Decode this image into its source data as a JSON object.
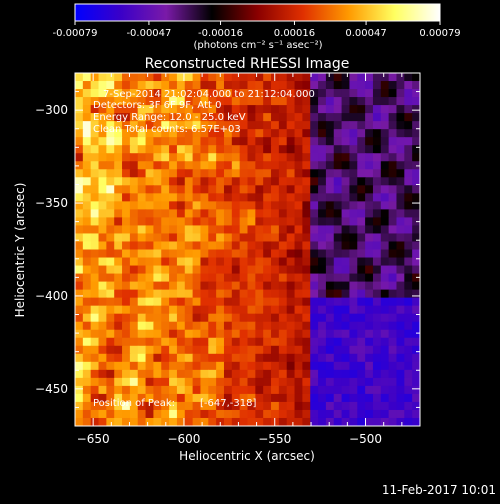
{
  "colorbar": {
    "ticks": [
      "-0.00079",
      "-0.00047",
      "-0.00016",
      "0.00016",
      "0.00047",
      "0.00079"
    ],
    "tick_values": [
      -0.00079,
      -0.00047,
      -0.00016,
      0.00016,
      0.00047,
      0.00079
    ],
    "unit_label": "(photons cm⁻² s⁻¹ asec⁻²)",
    "range": [
      -0.00079,
      0.00079
    ],
    "stops": [
      "#0000ff",
      "#3a00c8",
      "#7a1aa8",
      "#000000",
      "#8a0000",
      "#e03000",
      "#ff9a00",
      "#ffff60",
      "#ffffff"
    ]
  },
  "header": {
    "line1": "7-Sep-2014 21:02:04.000 to 21:12:04.000",
    "line2": "Detectors: 3F 6F 9F, Att 0",
    "line3": "Energy Range: 12.0 - 25.0 keV",
    "line4": "Clean    Total counts: 6.57E+03"
  },
  "peak": {
    "label": "Position of Peak:",
    "value": "[-647,-318]"
  },
  "footer": {
    "date": "11-Feb-2017 10:01"
  },
  "chart_data": {
    "type": "heatmap",
    "title": "Reconstructed RHESSI Image",
    "xlabel": "Heliocentric X (arcsec)",
    "ylabel": "Heliocentric Y (arcsec)",
    "xlim": [
      -660,
      -470
    ],
    "ylim": [
      -470,
      -280
    ],
    "xticks": [
      -650,
      -600,
      -550,
      -500
    ],
    "yticks": [
      -300,
      -350,
      -400,
      -450
    ],
    "xtick_labels": [
      "−650",
      "−600",
      "−550",
      "−500"
    ],
    "ytick_labels": [
      "−300",
      "−350",
      "−400",
      "−450"
    ],
    "colorbar_range": [
      -0.00079,
      0.00079
    ],
    "peak_position": [
      -647,
      -318
    ],
    "description": ""
  }
}
